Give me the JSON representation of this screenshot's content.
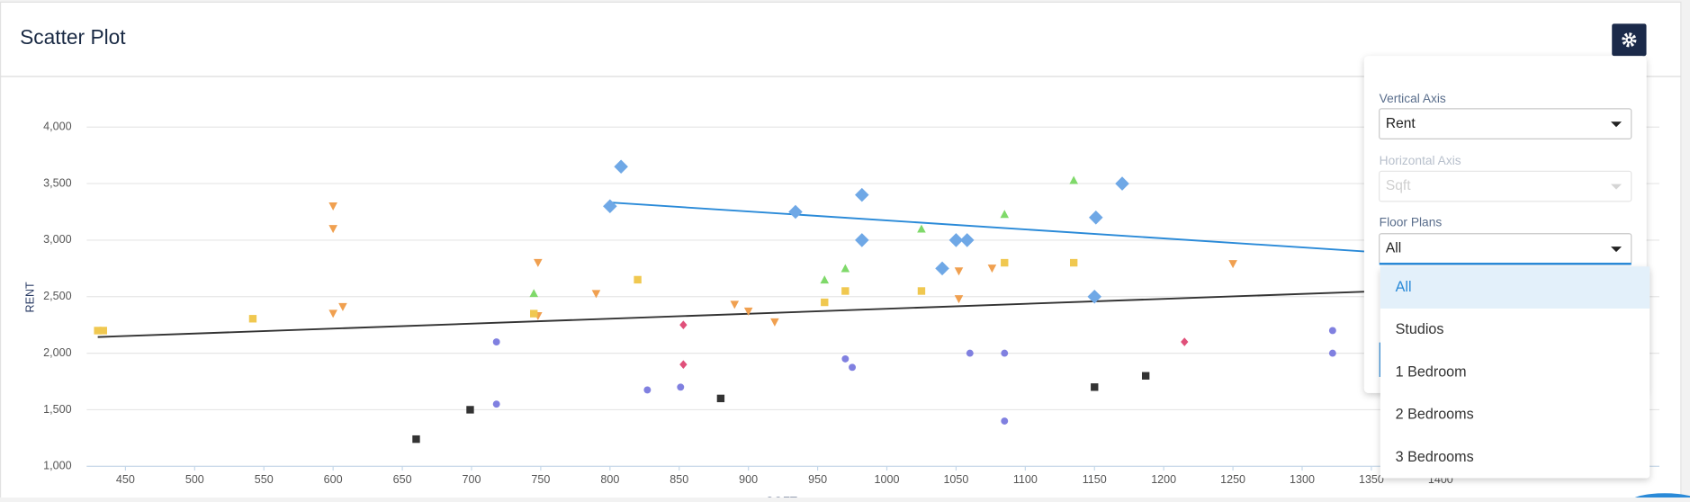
{
  "header": {
    "title": "Scatter Plot"
  },
  "chart_data": {
    "type": "scatter",
    "x_label": "SQFT",
    "y_label": "RENT",
    "xlim": [
      422,
      1558
    ],
    "ylim": [
      1000,
      4000
    ],
    "xticks": [
      450,
      500,
      550,
      600,
      650,
      700,
      750,
      800,
      850,
      900,
      950,
      1000,
      1050,
      1100,
      1150,
      1200,
      1250,
      1300,
      1350,
      1400
    ],
    "yticks": [
      {
        "value": 1000,
        "label": "1,000"
      },
      {
        "value": 1500,
        "label": "1,500"
      },
      {
        "value": 2000,
        "label": "2,000"
      },
      {
        "value": 2500,
        "label": "2,500"
      },
      {
        "value": 3000,
        "label": "3,000"
      },
      {
        "value": 3500,
        "label": "3,500"
      },
      {
        "value": 4000,
        "label": "4,000"
      }
    ],
    "grid": true,
    "series": [
      {
        "color": "#6fa8e6",
        "marker": "diamond",
        "x": [
          800,
          808,
          934,
          982,
          982,
          1040,
          1050,
          1058,
          1151,
          1170,
          1150
        ],
        "values": [
          3300,
          3650,
          3250,
          3400,
          3000,
          2750,
          3000,
          3000,
          3200,
          3500,
          2500
        ]
      },
      {
        "color": "#7fd96a",
        "marker": "triangle-up",
        "x": [
          745,
          955,
          970,
          1025,
          1085,
          1135
        ],
        "values": [
          2530,
          2650,
          2750,
          3100,
          3230,
          3530
        ]
      },
      {
        "color": "#f0a050",
        "marker": "triangle-down",
        "x": [
          600,
          600,
          600,
          607,
          748,
          748,
          790,
          890,
          900,
          919,
          1052,
          1052,
          1076,
          1250
        ],
        "values": [
          3300,
          3100,
          2350,
          2410,
          2800,
          2330,
          2525,
          2430,
          2370,
          2275,
          2725,
          2480,
          2750,
          2790
        ]
      },
      {
        "color": "#f0c850",
        "marker": "square",
        "x": [
          430,
          434,
          542,
          745,
          820,
          955,
          970,
          1025,
          1085,
          1135
        ],
        "values": [
          2200,
          2200,
          2305,
          2350,
          2650,
          2450,
          2550,
          2550,
          2800,
          2800
        ]
      },
      {
        "color": "#e0507a",
        "marker": "diamond-small",
        "x": [
          853,
          853,
          1215
        ],
        "values": [
          2250,
          1900,
          2100
        ]
      },
      {
        "color": "#8080e0",
        "marker": "circle",
        "x": [
          718,
          718,
          827,
          851,
          970,
          975,
          1060,
          1085,
          1085,
          1322,
          1322
        ],
        "values": [
          2100,
          1550,
          1675,
          1700,
          1950,
          1875,
          2000,
          2000,
          1400,
          2200,
          2000
        ]
      },
      {
        "color": "#333333",
        "marker": "square",
        "x": [
          660,
          699,
          880,
          1150,
          1187
        ],
        "values": [
          1240,
          1500,
          1600,
          1700,
          1800
        ]
      }
    ],
    "trendlines": [
      {
        "color": "#2a8ad8",
        "x": [
          800,
          1363
        ],
        "values": [
          3333,
          2886
        ]
      },
      {
        "color": "#333333",
        "x": [
          430,
          1363
        ],
        "values": [
          2143,
          2552
        ]
      }
    ]
  },
  "settings": {
    "vertical_axis": {
      "label": "Vertical Axis",
      "value": "Rent"
    },
    "horizontal_axis": {
      "label": "Horizontal Axis",
      "value": "Sqft"
    },
    "floor_plans": {
      "label": "Floor Plans",
      "value": "All",
      "options": [
        "All",
        "Studios",
        "1 Bedroom",
        "2 Bedrooms",
        "3 Bedrooms"
      ]
    }
  }
}
